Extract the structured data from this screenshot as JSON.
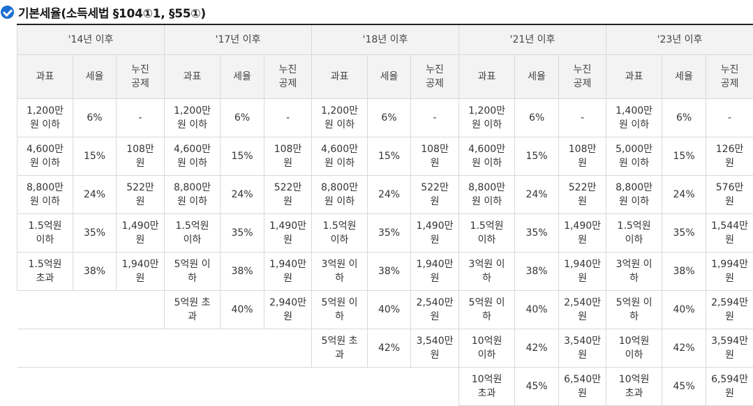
{
  "title": "기본세율(소득세법 §104①1, §55①)",
  "icon": "check-circle-icon",
  "accent": "#1b6fd0",
  "eras": [
    "'14년 이후",
    "'17년 이후",
    "'18년 이후",
    "'21년 이후",
    "'23년 이후"
  ],
  "headers": {
    "base": "과표",
    "rate": "세율",
    "deduct": "누진\n공제"
  },
  "rows": [
    [
      [
        "1,200만\n원 이하",
        "6%",
        "-"
      ],
      [
        "1,200만\n원 이하",
        "6%",
        "-"
      ],
      [
        "1,200만\n원 이하",
        "6%",
        "-"
      ],
      [
        "1,200만\n원 이하",
        "6%",
        "-"
      ],
      [
        "1,400만\n원 이하",
        "6%",
        "-"
      ]
    ],
    [
      [
        "4,600만\n원 이하",
        "15%",
        "108만\n원"
      ],
      [
        "4,600만\n원 이하",
        "15%",
        "108만\n원"
      ],
      [
        "4,600만\n원 이하",
        "15%",
        "108만\n원"
      ],
      [
        "4,600만\n원 이하",
        "15%",
        "108만\n원"
      ],
      [
        "5,000만\n원 이하",
        "15%",
        "126만\n원"
      ]
    ],
    [
      [
        "8,800만\n원 이하",
        "24%",
        "522만\n원"
      ],
      [
        "8,800만\n원 이하",
        "24%",
        "522만\n원"
      ],
      [
        "8,800만\n원 이하",
        "24%",
        "522만\n원"
      ],
      [
        "8,800만\n원 이하",
        "24%",
        "522만\n원"
      ],
      [
        "8,800만\n원 이하",
        "24%",
        "576만\n원"
      ]
    ],
    [
      [
        "1.5억원\n이하",
        "35%",
        "1,490만\n원"
      ],
      [
        "1.5억원\n이하",
        "35%",
        "1,490만\n원"
      ],
      [
        "1.5억원\n이하",
        "35%",
        "1,490만\n원"
      ],
      [
        "1.5억원\n이하",
        "35%",
        "1,490만\n원"
      ],
      [
        "1.5억원\n이하",
        "35%",
        "1,544만\n원"
      ]
    ],
    [
      [
        "1.5억원\n초과",
        "38%",
        "1,940만\n원"
      ],
      [
        "5억원 이\n하",
        "38%",
        "1,940만\n원"
      ],
      [
        "3억원 이\n하",
        "38%",
        "1,940만\n원"
      ],
      [
        "3억원 이\n하",
        "38%",
        "1,940만\n원"
      ],
      [
        "3억원 이\n하",
        "38%",
        "1,994만\n원"
      ]
    ],
    [
      null,
      [
        "5억원 초\n과",
        "40%",
        "2,940만\n원"
      ],
      [
        "5억원 이\n하",
        "40%",
        "2,540만\n원"
      ],
      [
        "5억원 이\n하",
        "40%",
        "2,540만\n원"
      ],
      [
        "5억원 이\n하",
        "40%",
        "2,594만\n원"
      ]
    ],
    [
      null,
      null,
      [
        "5억원 초\n과",
        "42%",
        "3,540만\n원"
      ],
      [
        "10억원\n이하",
        "42%",
        "3,540만\n원"
      ],
      [
        "10억원\n이하",
        "42%",
        "3,594만\n원"
      ]
    ],
    [
      null,
      null,
      null,
      [
        "10억원\n초과",
        "45%",
        "6,540만\n원"
      ],
      [
        "10억원\n초과",
        "45%",
        "6,594만\n원"
      ]
    ]
  ]
}
